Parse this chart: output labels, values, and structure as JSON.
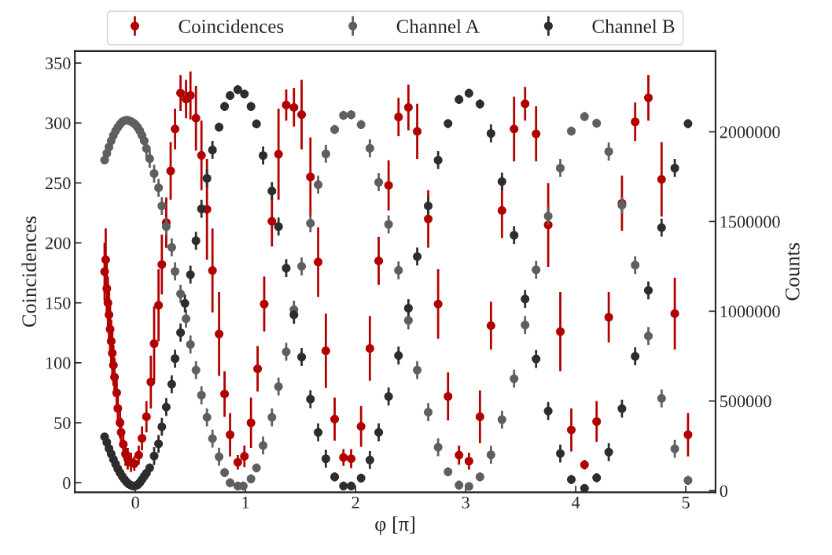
{
  "chart_data": {
    "type": "scatter",
    "xlabel": "φ [π]",
    "ylabel": "Coincidences",
    "y2label": "Counts",
    "xlim": [
      -0.55,
      5.27
    ],
    "xticks": [
      0,
      1,
      2,
      3,
      4,
      5
    ],
    "ylim": [
      -8,
      360
    ],
    "yticks": [
      0,
      50,
      100,
      150,
      200,
      250,
      300,
      350
    ],
    "y2lim": [
      -9000,
      2450000
    ],
    "y2ticks": [
      0,
      500000,
      1000000,
      1500000,
      2000000
    ],
    "legend": "top",
    "marker": "circle",
    "grid": false,
    "series": [
      {
        "name": "Coincidences",
        "color": "#b20000",
        "x": [
          -0.28,
          -0.27,
          -0.26,
          -0.25,
          -0.24,
          -0.23,
          -0.22,
          -0.21,
          -0.2,
          -0.19,
          -0.17,
          -0.16,
          -0.14,
          -0.13,
          -0.11,
          -0.09,
          -0.07,
          -0.04,
          -0.01,
          0.03,
          0.06,
          0.1,
          0.14,
          0.17,
          0.21,
          0.24,
          0.28,
          0.32,
          0.36,
          0.41,
          0.46,
          0.5,
          0.55,
          0.6,
          0.65,
          0.7,
          0.76,
          0.81,
          0.86,
          0.93,
          0.99,
          1.05,
          1.11,
          1.17,
          1.24,
          1.3,
          1.37,
          1.44,
          1.51,
          1.59,
          1.66,
          1.73,
          1.81,
          1.89,
          1.96,
          2.05,
          2.13,
          2.21,
          2.3,
          2.39,
          2.48,
          2.56,
          2.66,
          2.75,
          2.84,
          2.94,
          3.03,
          3.13,
          3.23,
          3.33,
          3.44,
          3.54,
          3.64,
          3.75,
          3.86,
          3.96,
          4.08,
          4.19,
          4.3,
          4.42,
          4.54,
          4.66,
          4.78,
          4.9,
          5.02
        ],
        "values": [
          176,
          186,
          162,
          150,
          140,
          128,
          118,
          108,
          98,
          88,
          75,
          62,
          50,
          42,
          32,
          24,
          20,
          17,
          16,
          23,
          37,
          55,
          84,
          116,
          148,
          182,
          217,
          260,
          295,
          325,
          320,
          323,
          304,
          273,
          228,
          177,
          124,
          74,
          40,
          17,
          22,
          50,
          95,
          149,
          218,
          274,
          315,
          313,
          307,
          255,
          184,
          110,
          53,
          21,
          20,
          47,
          112,
          185,
          248,
          305,
          313,
          293,
          220,
          149,
          72,
          23,
          18,
          55,
          131,
          227,
          295,
          316,
          291,
          215,
          126,
          44,
          15,
          51,
          138,
          233,
          301,
          321,
          253,
          141,
          40
        ],
        "errors": [
          24,
          26,
          22,
          22,
          20,
          20,
          18,
          18,
          17,
          16,
          15,
          14,
          13,
          12,
          11,
          10,
          9,
          8,
          6,
          8,
          10,
          13,
          22,
          31,
          30,
          25,
          21,
          24,
          17,
          15,
          16,
          20,
          27,
          29,
          42,
          35,
          35,
          19,
          18,
          6,
          9,
          21,
          19,
          23,
          21,
          38,
          13,
          16,
          29,
          33,
          29,
          31,
          18,
          7,
          8,
          17,
          27,
          20,
          21,
          16,
          19,
          23,
          24,
          29,
          20,
          8,
          7,
          22,
          20,
          23,
          27,
          14,
          23,
          35,
          33,
          18,
          4,
          17,
          21,
          23,
          16,
          19,
          31,
          30,
          18
        ]
      },
      {
        "name": "Channel A",
        "color": "#5f5f5f",
        "axis": "y2",
        "x": [
          -0.28,
          -0.26,
          -0.24,
          -0.22,
          -0.2,
          -0.18,
          -0.16,
          -0.14,
          -0.12,
          -0.1,
          -0.08,
          -0.06,
          -0.04,
          -0.02,
          0,
          0.02,
          0.04,
          0.06,
          0.08,
          0.1,
          0.13,
          0.17,
          0.21,
          0.24,
          0.28,
          0.33,
          0.36,
          0.41,
          0.46,
          0.5,
          0.55,
          0.6,
          0.65,
          0.7,
          0.76,
          0.81,
          0.86,
          0.93,
          0.98,
          1.05,
          1.1,
          1.16,
          1.24,
          1.3,
          1.37,
          1.44,
          1.51,
          1.59,
          1.66,
          1.73,
          1.81,
          1.89,
          1.96,
          2.05,
          2.13,
          2.21,
          2.3,
          2.39,
          2.48,
          2.56,
          2.66,
          2.75,
          2.84,
          2.94,
          3.03,
          3.13,
          3.23,
          3.33,
          3.44,
          3.54,
          3.64,
          3.75,
          3.86,
          3.96,
          4.08,
          4.19,
          4.3,
          4.42,
          4.54,
          4.66,
          4.78,
          4.9,
          5.02
        ],
        "values": [
          1843000,
          1880000,
          1915000,
          1950000,
          1980000,
          2005000,
          2025000,
          2042000,
          2055000,
          2062000,
          2065000,
          2063000,
          2058000,
          2050000,
          2040000,
          2025000,
          2005000,
          1980000,
          1950000,
          1907000,
          1850000,
          1767000,
          1688000,
          1587000,
          1472000,
          1356000,
          1222000,
          1097000,
          958000,
          815000,
          672000,
          532000,
          409000,
          290000,
          189000,
          101000,
          44000,
          26000,
          26000,
          66000,
          127000,
          252000,
          409000,
          580000,
          774000,
          1009000,
          1250000,
          1490000,
          1705000,
          1877000,
          2013000,
          2092000,
          2095000,
          2040000,
          1908000,
          1719000,
          1484000,
          1228000,
          949000,
          672000,
          437000,
          242000,
          105000,
          31000,
          24000,
          77000,
          200000,
          396000,
          624000,
          923000,
          1231000,
          1530000,
          1798000,
          2004000,
          2085000,
          2048000,
          1890000,
          1591000,
          1257000,
          862000,
          514000,
          233000,
          57000
        ],
        "errors": [
          15000,
          15000,
          15000,
          15000,
          15000,
          15000,
          15000,
          15000,
          15000,
          15000,
          15000,
          15000,
          15000,
          15000,
          15000,
          15000,
          15000,
          15000,
          15000,
          50000,
          50000,
          50000,
          50000,
          50000,
          50000,
          50000,
          50000,
          50000,
          50000,
          50000,
          50000,
          50000,
          50000,
          50000,
          50000,
          25000,
          25000,
          25000,
          25000,
          25000,
          25000,
          50000,
          50000,
          50000,
          50000,
          50000,
          50000,
          50000,
          50000,
          50000,
          25000,
          25000,
          25000,
          25000,
          50000,
          50000,
          50000,
          50000,
          50000,
          50000,
          50000,
          50000,
          25000,
          25000,
          null,
          25000,
          50000,
          50000,
          50000,
          50000,
          50000,
          50000,
          50000,
          25000,
          25000,
          25000,
          50000,
          50000,
          50000,
          50000,
          50000,
          50000,
          25000
        ]
      },
      {
        "name": "Channel B",
        "color": "#2d2d2d",
        "axis": "y2",
        "x": [
          -0.28,
          -0.26,
          -0.24,
          -0.22,
          -0.2,
          -0.18,
          -0.16,
          -0.14,
          -0.12,
          -0.1,
          -0.08,
          -0.06,
          -0.04,
          -0.02,
          0,
          0.02,
          0.04,
          0.06,
          0.08,
          0.1,
          0.13,
          0.17,
          0.21,
          0.24,
          0.28,
          0.33,
          0.36,
          0.41,
          0.45,
          0.5,
          0.55,
          0.6,
          0.65,
          0.7,
          0.76,
          0.81,
          0.86,
          0.93,
          0.99,
          1.05,
          1.1,
          1.16,
          1.24,
          1.3,
          1.37,
          1.44,
          1.51,
          1.59,
          1.66,
          1.73,
          1.81,
          1.89,
          1.96,
          2.05,
          2.13,
          2.21,
          2.3,
          2.39,
          2.48,
          2.56,
          2.66,
          2.75,
          2.84,
          2.94,
          3.03,
          3.13,
          3.23,
          3.33,
          3.44,
          3.54,
          3.64,
          3.75,
          3.86,
          3.96,
          4.08,
          4.19,
          4.3,
          4.42,
          4.54,
          4.66,
          4.78,
          4.9,
          5.02
        ],
        "values": [
          300000,
          270000,
          235000,
          205000,
          175000,
          148000,
          122000,
          100000,
          80000,
          63000,
          48000,
          37000,
          30000,
          26000,
          27000,
          33000,
          45000,
          62000,
          80000,
          97000,
          127000,
          193000,
          261000,
          356000,
          466000,
          593000,
          736000,
          881000,
          1044000,
          1204000,
          1393000,
          1571000,
          1741000,
          1899000,
          2026000,
          2141000,
          2202000,
          2235000,
          2211000,
          2141000,
          2044000,
          1868000,
          1670000,
          1472000,
          1240000,
          980000,
          745000,
          510000,
          325000,
          178000,
          77000,
          26000,
          26000,
          70000,
          171000,
          325000,
          525000,
          753000,
          1017000,
          1305000,
          1587000,
          1842000,
          2046000,
          2180000,
          2215000,
          2155000,
          1991000,
          1723000,
          1424000,
          1068000,
          734000,
          444000,
          207000,
          62000,
          13000,
          72000,
          215000,
          457000,
          749000,
          1116000,
          1466000,
          1798000,
          2045000
        ],
        "errors": [
          15000,
          15000,
          15000,
          15000,
          15000,
          15000,
          15000,
          15000,
          15000,
          15000,
          15000,
          15000,
          15000,
          15000,
          15000,
          15000,
          15000,
          15000,
          15000,
          25000,
          25000,
          50000,
          50000,
          50000,
          50000,
          50000,
          50000,
          50000,
          50000,
          50000,
          50000,
          50000,
          50000,
          50000,
          25000,
          25000,
          25000,
          25000,
          25000,
          25000,
          25000,
          50000,
          50000,
          50000,
          50000,
          50000,
          50000,
          50000,
          50000,
          50000,
          25000,
          25000,
          25000,
          25000,
          50000,
          50000,
          50000,
          50000,
          50000,
          50000,
          50000,
          50000,
          25000,
          25000,
          25000,
          25000,
          50000,
          50000,
          50000,
          50000,
          50000,
          50000,
          50000,
          25000,
          null,
          25000,
          50000,
          50000,
          50000,
          50000,
          50000,
          50000,
          25000
        ]
      }
    ]
  }
}
